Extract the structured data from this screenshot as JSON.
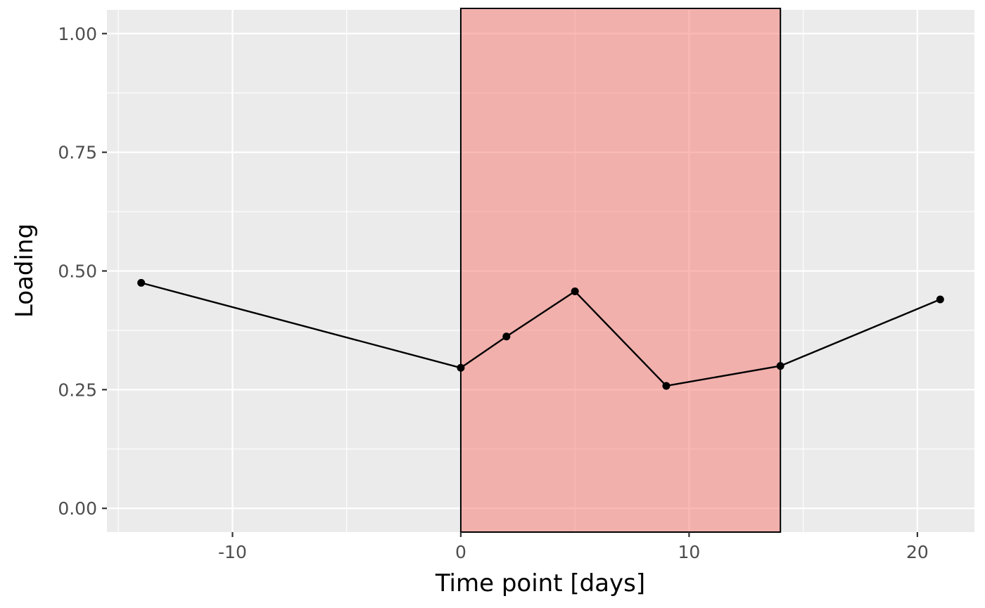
{
  "chart_data": {
    "type": "line",
    "xlabel": "Time point [days]",
    "ylabel": "Loading",
    "xlim": [
      -15.5,
      22.5
    ],
    "ylim": [
      -0.05,
      1.05
    ],
    "x_ticks": [
      -10,
      0,
      10,
      20
    ],
    "x_tick_labels": [
      "-10",
      "0",
      "10",
      "20"
    ],
    "x_minor_ticks": [
      -15,
      -5,
      5,
      15
    ],
    "y_ticks": [
      0,
      0.25,
      0.5,
      0.75,
      1
    ],
    "y_tick_labels": [
      "0.00",
      "0.25",
      "0.50",
      "0.75",
      "1.00"
    ],
    "y_minor_ticks": [
      0.125,
      0.375,
      0.625,
      0.875
    ],
    "grid": true,
    "highlight_interval": {
      "x_start": 0,
      "x_end": 14,
      "fill": "#f8766d",
      "opacity": 0.5
    },
    "series": [
      {
        "x": [
          -14,
          0,
          2,
          5,
          9,
          14,
          21
        ],
        "y": [
          0.475,
          0.296,
          0.362,
          0.457,
          0.258,
          0.3,
          0.44
        ],
        "color": "#000000"
      }
    ],
    "colors": {
      "panel_background": "#ebebeb",
      "grid_line": "#ffffff",
      "line": "#000000",
      "tick_label": "#4d4d4d"
    }
  }
}
